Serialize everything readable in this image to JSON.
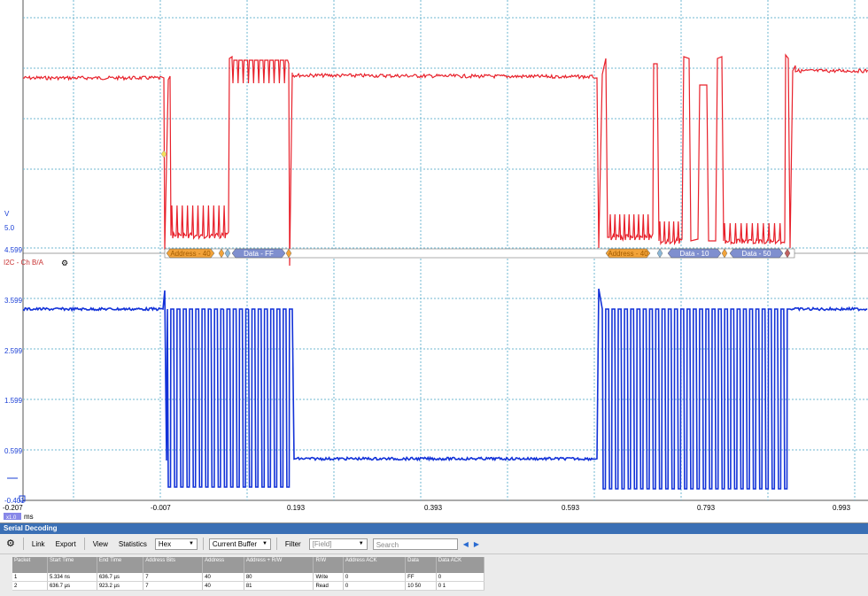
{
  "scope": {
    "y_unit": "V",
    "y_top_label": "5.0",
    "y_ticks": [
      "4.599",
      "3.599",
      "2.599",
      "1.599",
      "0.599",
      "-0.401"
    ],
    "x_ticks": [
      "-0.207",
      "-0.007",
      "0.193",
      "0.393",
      "0.593",
      "0.793",
      "0.993"
    ],
    "x_unit": "ms",
    "zoom_badge": "x1.0",
    "channel_label": "I2C - Ch B/A",
    "decode_frames": [
      {
        "kind": "address",
        "label": "Address - 40"
      },
      {
        "kind": "data",
        "label": "Data - FF"
      },
      {
        "kind": "address",
        "label": "Address - 40"
      },
      {
        "kind": "data",
        "label": "Data - 10"
      },
      {
        "kind": "data",
        "label": "Data - 50"
      }
    ],
    "colors": {
      "channel_a": "#e8202a",
      "channel_b": "#1232d8",
      "address_frame": "#f2a33a",
      "data_frame": "#7f8fcf",
      "grid": "#6fb7d0"
    }
  },
  "panel": {
    "title": "Serial Decoding",
    "toolbar": {
      "link": "Link",
      "export": "Export",
      "view": "View",
      "statistics": "Statistics",
      "format": "Hex",
      "buffer": "Current Buffer",
      "filter": "Filter",
      "field_placeholder": "[Field]",
      "search_placeholder": "Search"
    },
    "table": {
      "headers": [
        "Packet",
        "Start Time",
        "End Time",
        "Address Bits",
        "Address",
        "Address + R/W",
        "R/W",
        "Address ACK",
        "Data",
        "Data ACK"
      ],
      "rows": [
        [
          "1",
          "5.334 ns",
          "636.7 µs",
          "7",
          "40",
          "80",
          "Write",
          "0",
          "FF",
          "0"
        ],
        [
          "2",
          "636.7 µs",
          "923.2 µs",
          "7",
          "40",
          "81",
          "Read",
          "0",
          "10 50",
          "0 1"
        ]
      ]
    }
  }
}
